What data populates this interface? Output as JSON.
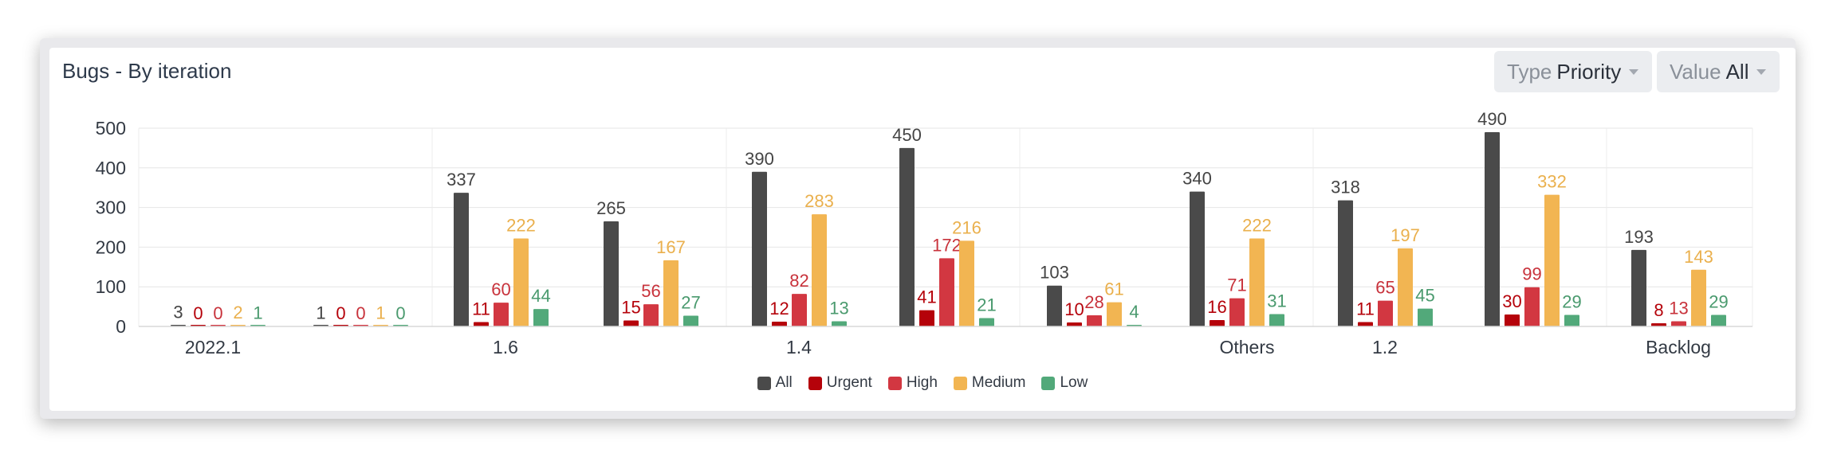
{
  "card": {
    "title": "Bugs - By iteration"
  },
  "filters": {
    "type": {
      "key": "Type",
      "value": "Priority"
    },
    "value": {
      "key": "Value",
      "value": "All"
    }
  },
  "icons": {
    "dropdown_caret": "chevron-down-icon"
  },
  "chart_data": {
    "type": "bar",
    "title": "Bugs - By iteration",
    "ylim": [
      0,
      500
    ],
    "yticks": [
      "0",
      "100",
      "200",
      "300",
      "400",
      "500"
    ],
    "grid": true,
    "legend_position": "bottom",
    "category_labels": [
      "2022.1",
      "1.6",
      "1.4",
      "Others",
      "1.2",
      "Backlog"
    ],
    "series": [
      {
        "name": "All",
        "color": "#4a4a4a",
        "values": [
          3,
          1,
          337,
          265,
          390,
          450,
          103,
          340,
          318,
          490,
          193
        ]
      },
      {
        "name": "Urgent",
        "color": "#b5020a",
        "values": [
          0,
          0,
          11,
          15,
          12,
          41,
          10,
          16,
          11,
          30,
          8
        ]
      },
      {
        "name": "High",
        "color": "#d23741",
        "values": [
          0,
          0,
          60,
          56,
          82,
          172,
          28,
          71,
          65,
          99,
          13
        ]
      },
      {
        "name": "Medium",
        "color": "#f2b552",
        "values": [
          2,
          1,
          222,
          167,
          283,
          216,
          61,
          222,
          197,
          332,
          143
        ]
      },
      {
        "name": "Low",
        "color": "#52a97a",
        "values": [
          1,
          0,
          44,
          27,
          13,
          21,
          4,
          31,
          45,
          29,
          29
        ]
      }
    ],
    "label_colors": [
      "#444444",
      "#b5020a",
      "#c8323b",
      "#eab04d",
      "#4a9a6e"
    ]
  }
}
